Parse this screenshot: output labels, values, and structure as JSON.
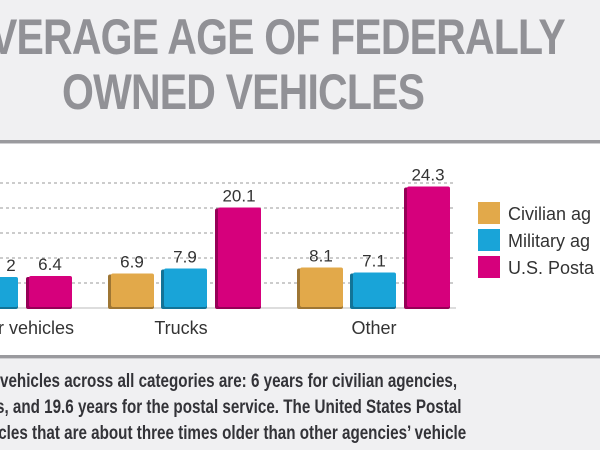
{
  "title": {
    "line1": "VERAGE AGE OF FEDERALLY",
    "line2": "OWNED VEHICLES"
  },
  "caption": {
    "line1": "vehicles across all categories are: 6 years for civilian agencies,",
    "line2": "s, and 19.6 years for the postal service. The United States Postal",
    "line3": "icles that are about three times older than other agencies’ vehicle"
  },
  "colors": {
    "civilian": "#E2A94A",
    "military": "#19A4D8",
    "postal": "#D6007C",
    "grid": "#9a9a9a",
    "label": "#333333"
  },
  "chart_data": {
    "type": "bar",
    "title": "Average Age of Federally Owned Vehicles",
    "categories": [
      "r vehicles",
      "Trucks",
      "Other"
    ],
    "series": [
      {
        "name": "Civilian ag",
        "values": [
          null,
          6.9,
          8.1
        ],
        "labels": [
          "",
          "6.9",
          "8.1"
        ]
      },
      {
        "name": "Military ag",
        "values": [
          6.2,
          7.9,
          7.1
        ],
        "labels": [
          "2",
          "7.9",
          "7.1"
        ]
      },
      {
        "name": "U.S. Posta",
        "values": [
          6.4,
          20.1,
          24.3
        ],
        "labels": [
          "6.4",
          "20.1",
          "24.3"
        ]
      }
    ],
    "ylim": [
      0,
      25
    ],
    "gridlines": [
      5,
      10,
      15,
      20,
      25
    ],
    "grid": true,
    "xlabel": "",
    "ylabel": "",
    "legend_position": "right"
  }
}
